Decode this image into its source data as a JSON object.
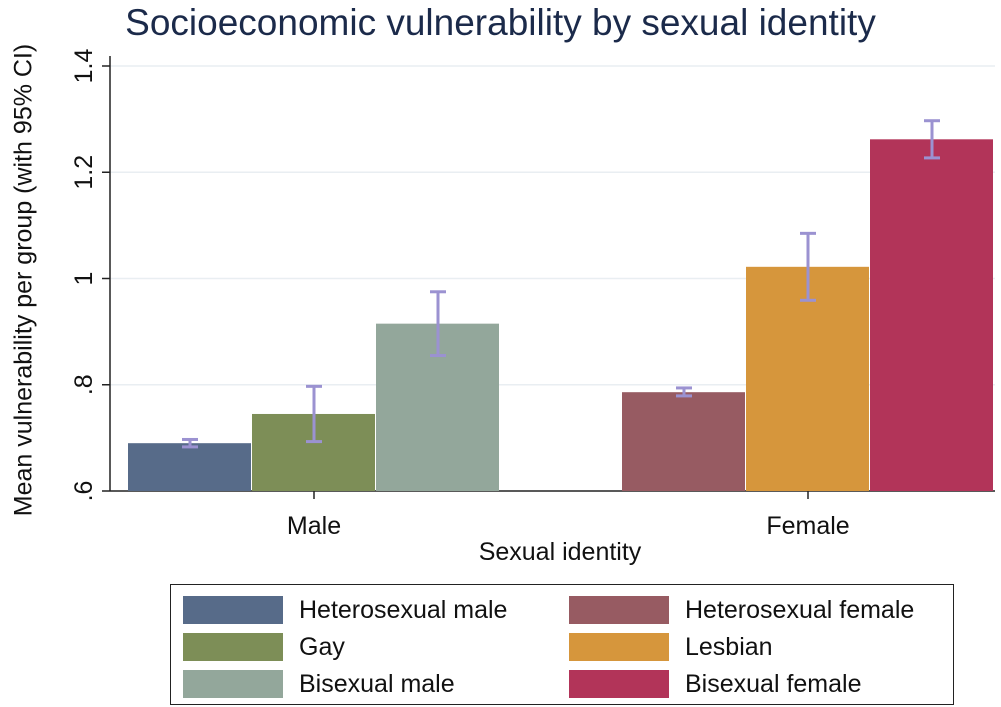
{
  "chart_data": {
    "type": "bar",
    "title": "Socioeconomic vulnerability by sexual identity",
    "xlabel": "Sexual identity",
    "ylabel": "Mean vulnerability per group (with 95% CI)",
    "ylim": [
      0.6,
      1.4
    ],
    "yticks": [
      ".6",
      ".8",
      "1",
      "1.2",
      "1.4"
    ],
    "groups": [
      "Male",
      "Female"
    ],
    "grid": true,
    "legend_position": "bottom",
    "errorbar_color": "#9b92d1",
    "series": [
      {
        "name": "Heterosexual male",
        "group": "Male",
        "value": 0.69,
        "ci": [
          0.683,
          0.697
        ],
        "color": "#576b89"
      },
      {
        "name": "Gay",
        "group": "Male",
        "value": 0.745,
        "ci": [
          0.693,
          0.797
        ],
        "color": "#7d8e57"
      },
      {
        "name": "Bisexual male",
        "group": "Male",
        "value": 0.915,
        "ci": [
          0.855,
          0.975
        ],
        "color": "#93a79b"
      },
      {
        "name": "Heterosexual female",
        "group": "Female",
        "value": 0.786,
        "ci": [
          0.779,
          0.794
        ],
        "color": "#975b62"
      },
      {
        "name": "Lesbian",
        "group": "Female",
        "value": 1.022,
        "ci": [
          0.959,
          1.085
        ],
        "color": "#d6963c"
      },
      {
        "name": "Bisexual female",
        "group": "Female",
        "value": 1.262,
        "ci": [
          1.227,
          1.297
        ],
        "color": "#b23459"
      }
    ]
  }
}
